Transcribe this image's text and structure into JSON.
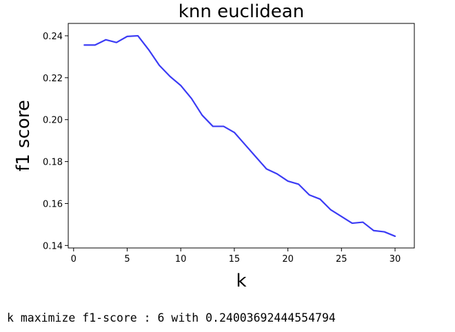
{
  "chart_data": {
    "type": "line",
    "title": "knn euclidean",
    "xlabel": "k",
    "ylabel": "f1 score",
    "xlim": [
      -0.5,
      31.8
    ],
    "ylim": [
      0.1388,
      0.2459
    ],
    "xticks": [
      0,
      5,
      10,
      15,
      20,
      25,
      30
    ],
    "xtick_labels": [
      "0",
      "5",
      "10",
      "15",
      "20",
      "25",
      "30"
    ],
    "yticks": [
      0.14,
      0.16,
      0.18,
      0.2,
      0.22,
      0.24
    ],
    "ytick_labels": [
      "0.14",
      "0.16",
      "0.18",
      "0.20",
      "0.22",
      "0.24"
    ],
    "grid": false,
    "series": [
      {
        "color": "#3b3bf5",
        "x": [
          1,
          2,
          3,
          4,
          5,
          6,
          7,
          8,
          9,
          10,
          11,
          12,
          13,
          14,
          15,
          16,
          17,
          18,
          19,
          20,
          21,
          22,
          23,
          24,
          25,
          26,
          27,
          28,
          29,
          30
        ],
        "y": [
          0.2356,
          0.2356,
          0.2381,
          0.2368,
          0.2397,
          0.24,
          0.2334,
          0.2259,
          0.2206,
          0.2163,
          0.2101,
          0.2021,
          0.1968,
          0.1968,
          0.1939,
          0.1881,
          0.1823,
          0.1765,
          0.1741,
          0.1707,
          0.1692,
          0.1641,
          0.1621,
          0.157,
          0.1538,
          0.1506,
          0.1511,
          0.1471,
          0.1465,
          0.1444
        ]
      }
    ]
  },
  "output": {
    "text": "k maximize f1-score : 6 with 0.24003692444554794"
  }
}
